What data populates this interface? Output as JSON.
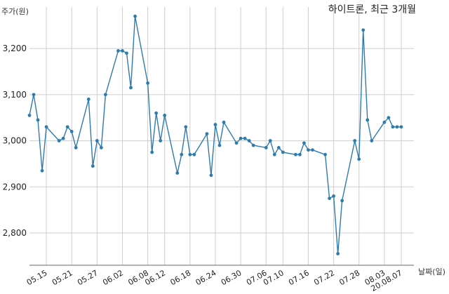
{
  "chart_data": {
    "type": "line",
    "title": "하이트론, 최근 3개월",
    "ylabel": "주가(원)",
    "xlabel": "날짜(일)",
    "ylim": [
      2730,
      3290
    ],
    "yticks": [
      2800,
      2900,
      3000,
      3100,
      3200
    ],
    "ytick_labels": [
      "2,800",
      "2,900",
      "3,000",
      "3,100",
      "3,200"
    ],
    "x_start": "2020-05-11",
    "x_end": "2020-08-10",
    "xticks": [
      "2020-05-15",
      "2020-05-21",
      "2020-05-27",
      "2020-06-02",
      "2020-06-08",
      "2020-06-12",
      "2020-06-18",
      "2020-06-24",
      "2020-06-30",
      "2020-07-06",
      "2020-07-10",
      "2020-07-16",
      "2020-07-22",
      "2020-07-28",
      "2020-08-03",
      "2020-08-07"
    ],
    "xtick_labels": [
      "05.15",
      "05.21",
      "05.27",
      "06.02",
      "06.08",
      "06.12",
      "06.18",
      "06.24",
      "06.30",
      "07.06",
      "07.10",
      "07.16",
      "07.22",
      "07.28",
      "08.03",
      "20.08.07"
    ],
    "grid": true,
    "color": "#2e7bad",
    "series": [
      {
        "name": "",
        "x": [
          "2020-05-11",
          "2020-05-12",
          "2020-05-13",
          "2020-05-14",
          "2020-05-15",
          "2020-05-18",
          "2020-05-19",
          "2020-05-20",
          "2020-05-21",
          "2020-05-22",
          "2020-05-25",
          "2020-05-26",
          "2020-05-27",
          "2020-05-28",
          "2020-05-29",
          "2020-06-01",
          "2020-06-02",
          "2020-06-03",
          "2020-06-04",
          "2020-06-05",
          "2020-06-08",
          "2020-06-09",
          "2020-06-10",
          "2020-06-11",
          "2020-06-12",
          "2020-06-15",
          "2020-06-16",
          "2020-06-17",
          "2020-06-18",
          "2020-06-19",
          "2020-06-22",
          "2020-06-23",
          "2020-06-24",
          "2020-06-25",
          "2020-06-26",
          "2020-06-29",
          "2020-06-30",
          "2020-07-01",
          "2020-07-02",
          "2020-07-03",
          "2020-07-06",
          "2020-07-07",
          "2020-07-08",
          "2020-07-09",
          "2020-07-10",
          "2020-07-13",
          "2020-07-14",
          "2020-07-15",
          "2020-07-16",
          "2020-07-17",
          "2020-07-20",
          "2020-07-21",
          "2020-07-22",
          "2020-07-23",
          "2020-07-24",
          "2020-07-27",
          "2020-07-28",
          "2020-07-29",
          "2020-07-30",
          "2020-07-31",
          "2020-08-03",
          "2020-08-04",
          "2020-08-05",
          "2020-08-06",
          "2020-08-07"
        ],
        "y": [
          3055,
          3100,
          3045,
          2935,
          3030,
          3000,
          3005,
          3030,
          3020,
          2985,
          3090,
          2945,
          3000,
          2985,
          3100,
          3195,
          3195,
          3190,
          3115,
          3270,
          3125,
          2975,
          3060,
          3000,
          3055,
          2930,
          2970,
          3030,
          2970,
          2970,
          3015,
          2925,
          3035,
          2990,
          3040,
          2995,
          3005,
          3005,
          3000,
          2990,
          2985,
          3000,
          2970,
          2985,
          2975,
          2970,
          2970,
          2995,
          2980,
          2980,
          2970,
          2875,
          2880,
          2755,
          2870,
          3000,
          2960,
          3240,
          3045,
          3000,
          3040,
          3050,
          3030,
          3030,
          3030
        ]
      }
    ]
  }
}
